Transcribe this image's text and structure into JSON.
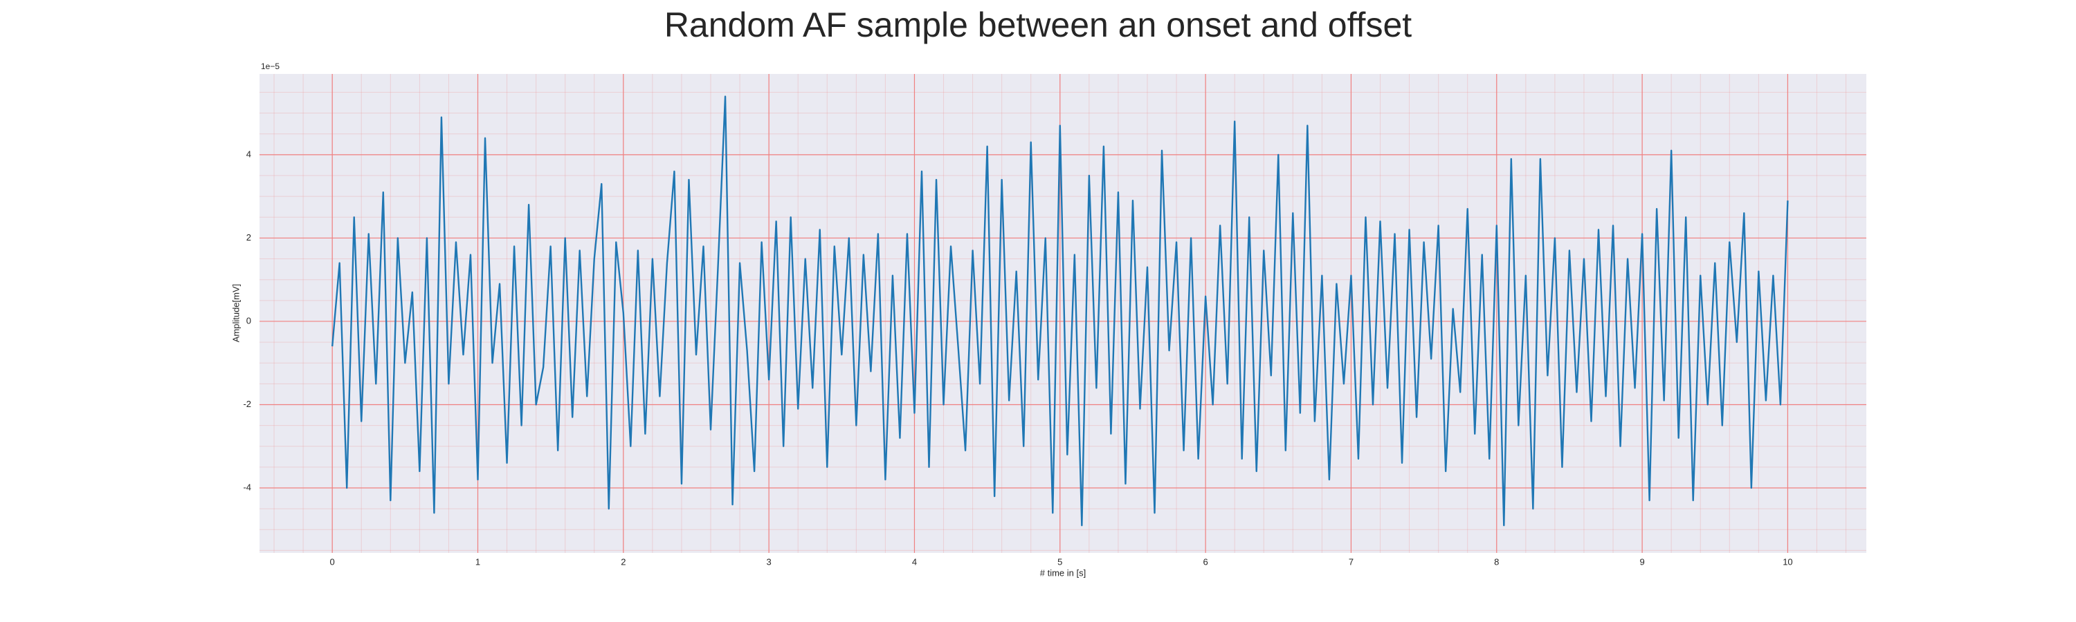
{
  "chart_data": {
    "type": "line",
    "title": "Random AF sample between an onset and offset",
    "xlabel": "# time in [s]",
    "ylabel": "Amplitude[mV]",
    "y_offset_label": "1e−5",
    "color": "#1f77b4",
    "background": "#eaeaf2",
    "grid": true,
    "grid_color": "#f08080",
    "minor_grid": true,
    "xlim": [
      -0.5,
      10.54
    ],
    "ylim": [
      -5.56,
      5.94
    ],
    "xticks": [
      0,
      1,
      2,
      3,
      4,
      5,
      6,
      7,
      8,
      9,
      10
    ],
    "yticks": [
      -4,
      -2,
      0,
      2,
      4
    ],
    "x": [
      0,
      0.05,
      0.1,
      0.15,
      0.2,
      0.25,
      0.3,
      0.35,
      0.4,
      0.45,
      0.5,
      0.55,
      0.6,
      0.65,
      0.7,
      0.75,
      0.8,
      0.85,
      0.9,
      0.95,
      1,
      1.05,
      1.1,
      1.15,
      1.2,
      1.25,
      1.3,
      1.35,
      1.4,
      1.45,
      1.5,
      1.55,
      1.6,
      1.65,
      1.7,
      1.75,
      1.8,
      1.85,
      1.9,
      1.95,
      2,
      2.05,
      2.1,
      2.15,
      2.2,
      2.25,
      2.3,
      2.35,
      2.4,
      2.45,
      2.5,
      2.55,
      2.6,
      2.65,
      2.7,
      2.75,
      2.8,
      2.85,
      2.9,
      2.95,
      3,
      3.05,
      3.1,
      3.15,
      3.2,
      3.25,
      3.3,
      3.35,
      3.4,
      3.45,
      3.5,
      3.55,
      3.6,
      3.65,
      3.7,
      3.75,
      3.8,
      3.85,
      3.9,
      3.95,
      4,
      4.05,
      4.1,
      4.15,
      4.2,
      4.25,
      4.3,
      4.35,
      4.4,
      4.45,
      4.5,
      4.55,
      4.6,
      4.65,
      4.7,
      4.75,
      4.8,
      4.85,
      4.9,
      4.95,
      5,
      5.05,
      5.1,
      5.15,
      5.2,
      5.25,
      5.3,
      5.35,
      5.4,
      5.45,
      5.5,
      5.55,
      5.6,
      5.65,
      5.7,
      5.75,
      5.8,
      5.85,
      5.9,
      5.95,
      6,
      6.05,
      6.1,
      6.15,
      6.2,
      6.25,
      6.3,
      6.35,
      6.4,
      6.45,
      6.5,
      6.55,
      6.6,
      6.65,
      6.7,
      6.75,
      6.8,
      6.85,
      6.9,
      6.95,
      7,
      7.05,
      7.1,
      7.15,
      7.2,
      7.25,
      7.3,
      7.35,
      7.4,
      7.45,
      7.5,
      7.55,
      7.6,
      7.65,
      7.7,
      7.75,
      7.8,
      7.85,
      7.9,
      7.95,
      8,
      8.05,
      8.1,
      8.15,
      8.2,
      8.25,
      8.3,
      8.35,
      8.4,
      8.45,
      8.5,
      8.55,
      8.6,
      8.65,
      8.7,
      8.75,
      8.8,
      8.85,
      8.9,
      8.95,
      9,
      9.05,
      9.1,
      9.15,
      9.2,
      9.25,
      9.3,
      9.35,
      9.4,
      9.45,
      9.5,
      9.55,
      9.6,
      9.65,
      9.7,
      9.75,
      9.8,
      9.85,
      9.9,
      9.95,
      10
    ],
    "values": [
      -0.6,
      1.4,
      -4.0,
      2.5,
      -2.4,
      2.1,
      -1.5,
      3.1,
      -4.3,
      2.0,
      -1.0,
      0.7,
      -3.6,
      2.0,
      -4.6,
      4.9,
      -1.5,
      1.9,
      -0.8,
      1.6,
      -3.8,
      4.4,
      -1.0,
      0.9,
      -3.4,
      1.8,
      -2.5,
      2.8,
      -2.0,
      -1.1,
      1.8,
      -3.1,
      2.0,
      -2.3,
      1.7,
      -1.8,
      1.5,
      3.3,
      -4.5,
      1.9,
      0.2,
      -3.0,
      1.7,
      -2.7,
      1.5,
      -1.8,
      1.4,
      3.6,
      -3.9,
      3.4,
      -0.8,
      1.8,
      -2.6,
      1.3,
      5.4,
      -4.4,
      1.4,
      -0.7,
      -3.6,
      1.9,
      -1.4,
      2.4,
      -3.0,
      2.5,
      -2.1,
      1.5,
      -1.6,
      2.2,
      -3.5,
      1.8,
      -0.8,
      2.0,
      -2.5,
      1.6,
      -1.2,
      2.1,
      -3.8,
      1.1,
      -2.8,
      2.1,
      -2.2,
      3.6,
      -3.5,
      3.4,
      -2.0,
      1.8,
      -0.6,
      -3.1,
      1.7,
      -1.5,
      4.2,
      -4.2,
      3.4,
      -1.9,
      1.2,
      -3.0,
      4.3,
      -1.4,
      2.0,
      -4.6,
      4.7,
      -3.2,
      1.6,
      -4.9,
      3.5,
      -1.6,
      4.2,
      -2.7,
      3.1,
      -3.9,
      2.9,
      -2.1,
      1.3,
      -4.6,
      4.1,
      -0.7,
      1.9,
      -3.1,
      2.0,
      -3.3,
      0.6,
      -2.0,
      2.3,
      -1.5,
      4.8,
      -3.3,
      2.5,
      -3.6,
      1.7,
      -1.3,
      4.0,
      -3.1,
      2.6,
      -2.2,
      4.7,
      -2.4,
      1.1,
      -3.8,
      0.9,
      -1.5,
      1.1,
      -3.3,
      2.5,
      -2.0,
      2.4,
      -1.6,
      2.1,
      -3.4,
      2.2,
      -2.3,
      1.9,
      -0.9,
      2.3,
      -3.6,
      0.3,
      -1.7,
      2.7,
      -2.7,
      1.6,
      -3.3,
      2.3,
      -4.9,
      3.9,
      -2.5,
      1.1,
      -4.5,
      3.9,
      -1.3,
      2.0,
      -3.5,
      1.7,
      -1.7,
      1.5,
      -2.4,
      2.2,
      -1.8,
      2.3,
      -3.0,
      1.5,
      -1.6,
      2.1,
      -4.3,
      2.7,
      -1.9,
      4.1,
      -2.8,
      2.5,
      -4.3,
      1.1,
      -2.0,
      1.4,
      -2.5,
      1.9,
      -0.5,
      2.6,
      -4.0,
      1.2,
      -1.9,
      1.1,
      -2.0,
      2.9
    ]
  }
}
